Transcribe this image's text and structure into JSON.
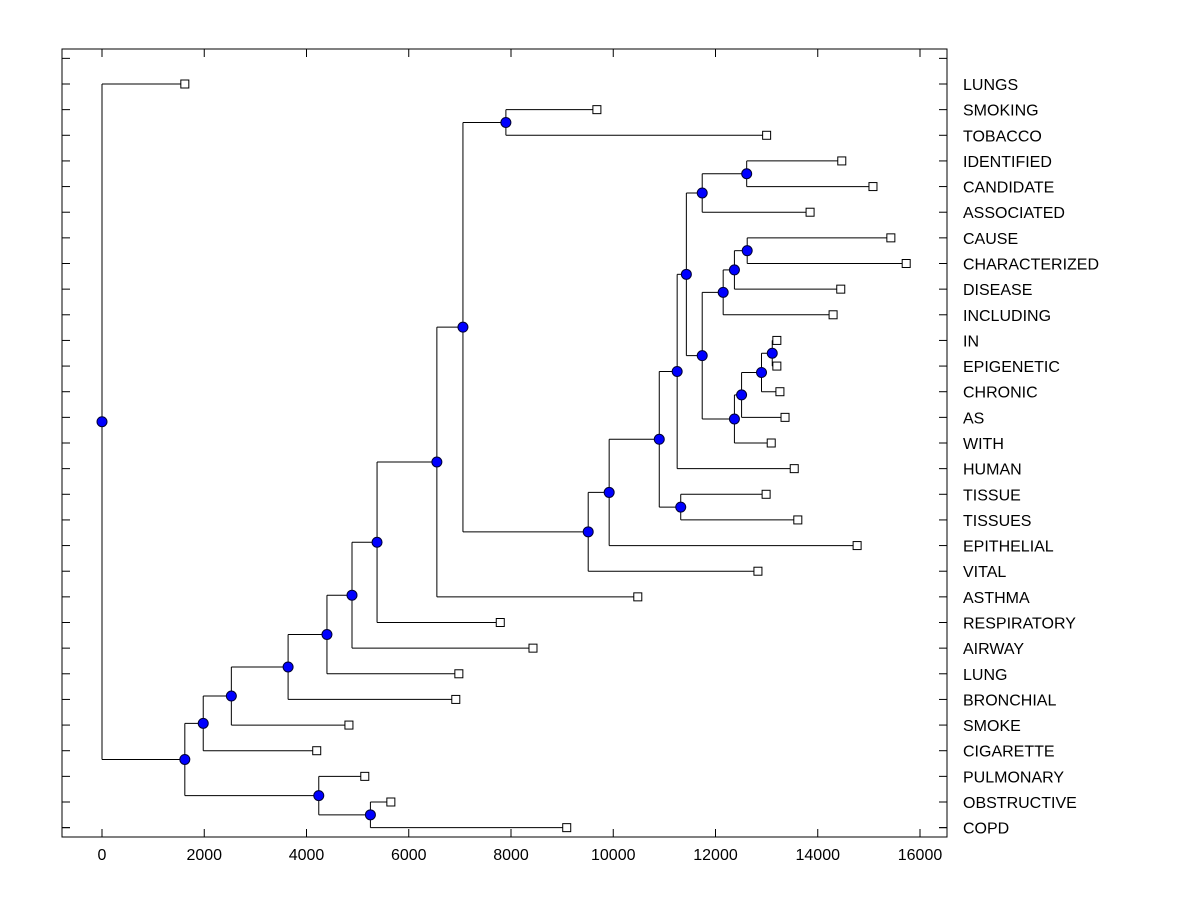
{
  "chart_data": {
    "type": "dendrogram",
    "title": "",
    "xlabel": "",
    "ylabel": "",
    "orientation": "horizontal",
    "xlim": [
      -760,
      16500
    ],
    "x_ticks": [
      0,
      2000,
      4000,
      6000,
      8000,
      10000,
      12000,
      14000,
      16000
    ],
    "x_tick_labels": [
      "0",
      "2000",
      "4000",
      "6000",
      "8000",
      "10000",
      "12000",
      "14000",
      "16000"
    ],
    "grid": false,
    "colors": {
      "node_fill": "#0000ff",
      "line": "#000000",
      "leaf_fill": "#ffffff"
    },
    "leaves": [
      {
        "label": "LUNGS",
        "x": 1620
      },
      {
        "label": "SMOKING",
        "x": 9680
      },
      {
        "label": "TOBACCO",
        "x": 13000
      },
      {
        "label": "IDENTIFIED",
        "x": 14470
      },
      {
        "label": "CANDIDATE",
        "x": 15080
      },
      {
        "label": "ASSOCIATED",
        "x": 13850
      },
      {
        "label": "CAUSE",
        "x": 15430
      },
      {
        "label": "CHARACTERIZED",
        "x": 15730
      },
      {
        "label": "DISEASE",
        "x": 14450
      },
      {
        "label": "INCLUDING",
        "x": 14300
      },
      {
        "label": "IN",
        "x": 13200
      },
      {
        "label": "EPIGENETIC",
        "x": 13200
      },
      {
        "label": "CHRONIC",
        "x": 13260
      },
      {
        "label": "AS",
        "x": 13360
      },
      {
        "label": "WITH",
        "x": 13090
      },
      {
        "label": "HUMAN",
        "x": 13540
      },
      {
        "label": "TISSUE",
        "x": 12990
      },
      {
        "label": "TISSUES",
        "x": 13610
      },
      {
        "label": "EPITHELIAL",
        "x": 14770
      },
      {
        "label": "VITAL",
        "x": 12830
      },
      {
        "label": "ASTHMA",
        "x": 10480
      },
      {
        "label": "RESPIRATORY",
        "x": 7790
      },
      {
        "label": "AIRWAY",
        "x": 8430
      },
      {
        "label": "LUNG",
        "x": 6980
      },
      {
        "label": "BRONCHIAL",
        "x": 6920
      },
      {
        "label": "SMOKE",
        "x": 4830
      },
      {
        "label": "CIGARETTE",
        "x": 4200
      },
      {
        "label": "PULMONARY",
        "x": 5140
      },
      {
        "label": "OBSTRUCTIVE",
        "x": 5650
      },
      {
        "label": "COPD",
        "x": 9090
      }
    ],
    "nodes": [
      {
        "id": "root",
        "x": 0,
        "children": [
          "L:LUNGS",
          "n_a"
        ]
      },
      {
        "id": "n_a",
        "x": 1620,
        "children": [
          "n_b",
          "n_cop"
        ]
      },
      {
        "id": "n_cop",
        "x": 4240,
        "children": [
          "L:PULMONARY",
          "n_obs"
        ]
      },
      {
        "id": "n_obs",
        "x": 5250,
        "children": [
          "L:OBSTRUCTIVE",
          "L:COPD"
        ]
      },
      {
        "id": "n_b",
        "x": 1980,
        "children": [
          "n_c",
          "L:CIGARETTE"
        ]
      },
      {
        "id": "n_c",
        "x": 2530,
        "children": [
          "n_d",
          "L:SMOKE"
        ]
      },
      {
        "id": "n_d",
        "x": 3640,
        "children": [
          "n_e",
          "L:BRONCHIAL"
        ]
      },
      {
        "id": "n_e",
        "x": 4400,
        "children": [
          "n_f",
          "L:LUNG"
        ]
      },
      {
        "id": "n_f",
        "x": 4890,
        "children": [
          "n_g",
          "L:AIRWAY"
        ]
      },
      {
        "id": "n_g",
        "x": 5380,
        "children": [
          "n_h",
          "L:RESPIRATORY"
        ]
      },
      {
        "id": "n_h",
        "x": 6550,
        "children": [
          "n_i",
          "L:ASTHMA"
        ]
      },
      {
        "id": "n_i",
        "x": 7060,
        "children": [
          "n_smk",
          "n_j"
        ]
      },
      {
        "id": "n_smk",
        "x": 7900,
        "children": [
          "L:SMOKING",
          "L:TOBACCO"
        ]
      },
      {
        "id": "n_j",
        "x": 9510,
        "children": [
          "n_k",
          "L:VITAL"
        ]
      },
      {
        "id": "n_k",
        "x": 9920,
        "children": [
          "n_l",
          "L:EPITHELIAL"
        ]
      },
      {
        "id": "n_l",
        "x": 10900,
        "children": [
          "n_m",
          "n_tis"
        ]
      },
      {
        "id": "n_tis",
        "x": 11320,
        "children": [
          "L:TISSUE",
          "L:TISSUES"
        ]
      },
      {
        "id": "n_m",
        "x": 11250,
        "children": [
          "n_n",
          "L:HUMAN"
        ]
      },
      {
        "id": "n_n",
        "x": 11430,
        "children": [
          "n_o",
          "n_p"
        ]
      },
      {
        "id": "n_o",
        "x": 11740,
        "children": [
          "n_ida",
          "L:ASSOCIATED"
        ]
      },
      {
        "id": "n_ida",
        "x": 12610,
        "children": [
          "L:IDENTIFIED",
          "L:CANDIDATE"
        ]
      },
      {
        "id": "n_p",
        "x": 11740,
        "children": [
          "n_q",
          "n_r"
        ]
      },
      {
        "id": "n_q",
        "x": 12150,
        "children": [
          "n_q2",
          "L:INCLUDING"
        ]
      },
      {
        "id": "n_q2",
        "x": 12370,
        "children": [
          "n_cau",
          "L:DISEASE"
        ]
      },
      {
        "id": "n_cau",
        "x": 12620,
        "children": [
          "L:CAUSE",
          "L:CHARACTERIZED"
        ]
      },
      {
        "id": "n_r",
        "x": 12370,
        "children": [
          "n_s",
          "L:WITH"
        ]
      },
      {
        "id": "n_s",
        "x": 12510,
        "children": [
          "n_t",
          "L:AS"
        ]
      },
      {
        "id": "n_t",
        "x": 12900,
        "children": [
          "n_u",
          "L:CHRONIC"
        ]
      },
      {
        "id": "n_u",
        "x": 13110,
        "children": [
          "L:IN",
          "L:EPIGENETIC"
        ]
      }
    ]
  }
}
